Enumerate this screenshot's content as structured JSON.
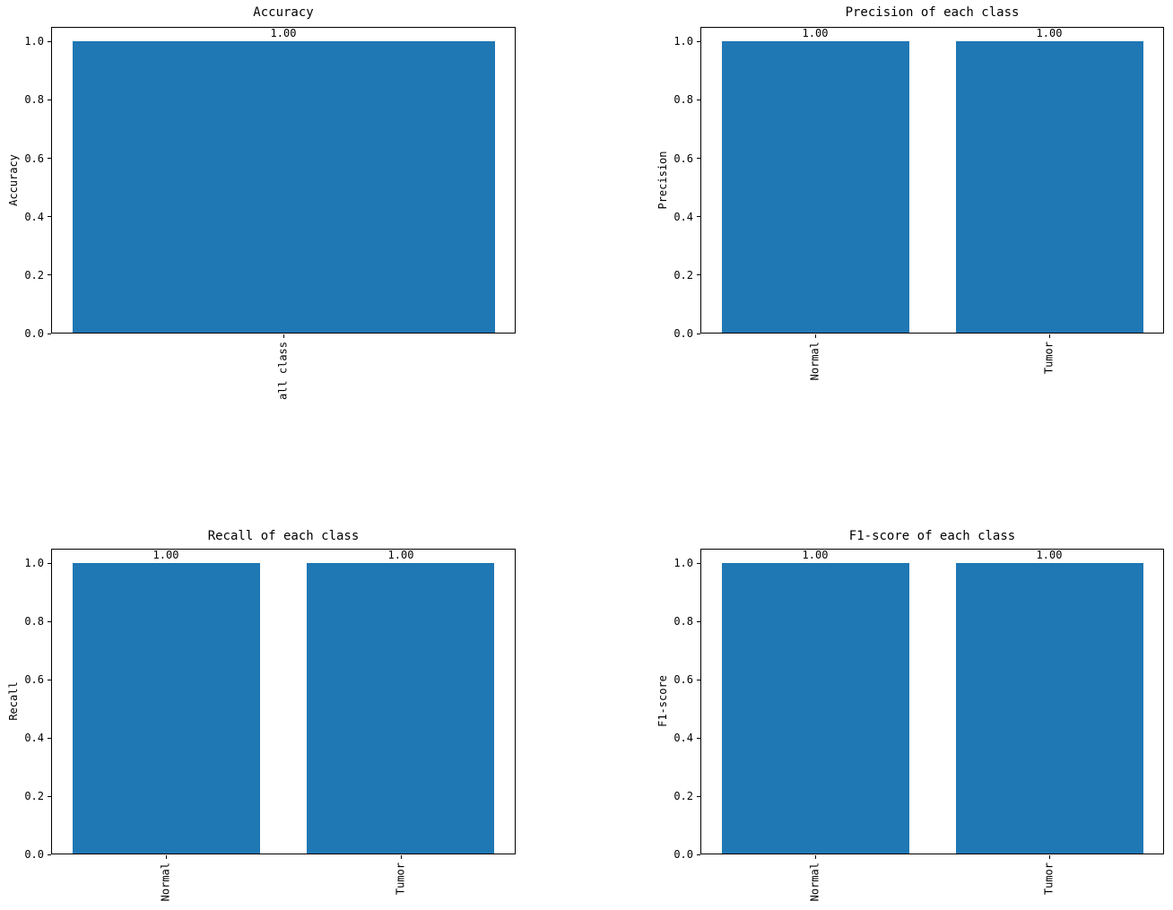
{
  "figure": {
    "background": "#ffffff",
    "text_color": "#000000",
    "spine_color": "#000000"
  },
  "chart_data": [
    {
      "type": "bar",
      "title": "Accuracy",
      "ylabel": "Accuracy",
      "xlabel": "",
      "categories": [
        "all class"
      ],
      "values": [
        1.0
      ],
      "bar_value_labels": [
        "1.00"
      ],
      "yticks": [
        0.0,
        0.2,
        0.4,
        0.6,
        0.8,
        1.0
      ],
      "ytick_labels": [
        "0.0",
        "0.2",
        "0.4",
        "0.6",
        "0.8",
        "1.0"
      ],
      "ylim": [
        0,
        1.05
      ],
      "bar_color": "#1f77b4",
      "xtick_rotation": 90,
      "grid": false,
      "legend": null
    },
    {
      "type": "bar",
      "title": "Precision of each class",
      "ylabel": "Precision",
      "xlabel": "",
      "categories": [
        "Normal",
        "Tumor"
      ],
      "values": [
        1.0,
        1.0
      ],
      "bar_value_labels": [
        "1.00",
        "1.00"
      ],
      "yticks": [
        0.0,
        0.2,
        0.4,
        0.6,
        0.8,
        1.0
      ],
      "ytick_labels": [
        "0.0",
        "0.2",
        "0.4",
        "0.6",
        "0.8",
        "1.0"
      ],
      "ylim": [
        0,
        1.05
      ],
      "bar_color": "#1f77b4",
      "xtick_rotation": 90,
      "grid": false,
      "legend": null
    },
    {
      "type": "bar",
      "title": "Recall of each class",
      "ylabel": "Recall",
      "xlabel": "",
      "categories": [
        "Normal",
        "Tumor"
      ],
      "values": [
        1.0,
        1.0
      ],
      "bar_value_labels": [
        "1.00",
        "1.00"
      ],
      "yticks": [
        0.0,
        0.2,
        0.4,
        0.6,
        0.8,
        1.0
      ],
      "ytick_labels": [
        "0.0",
        "0.2",
        "0.4",
        "0.6",
        "0.8",
        "1.0"
      ],
      "ylim": [
        0,
        1.05
      ],
      "bar_color": "#1f77b4",
      "xtick_rotation": 90,
      "grid": false,
      "legend": null
    },
    {
      "type": "bar",
      "title": "F1-score of each class",
      "ylabel": "F1-score",
      "xlabel": "",
      "categories": [
        "Normal",
        "Tumor"
      ],
      "values": [
        1.0,
        1.0
      ],
      "bar_value_labels": [
        "1.00",
        "1.00"
      ],
      "yticks": [
        0.0,
        0.2,
        0.4,
        0.6,
        0.8,
        1.0
      ],
      "ytick_labels": [
        "0.0",
        "0.2",
        "0.4",
        "0.6",
        "0.8",
        "1.0"
      ],
      "ylim": [
        0,
        1.05
      ],
      "bar_color": "#1f77b4",
      "xtick_rotation": 90,
      "grid": false,
      "legend": null
    }
  ]
}
